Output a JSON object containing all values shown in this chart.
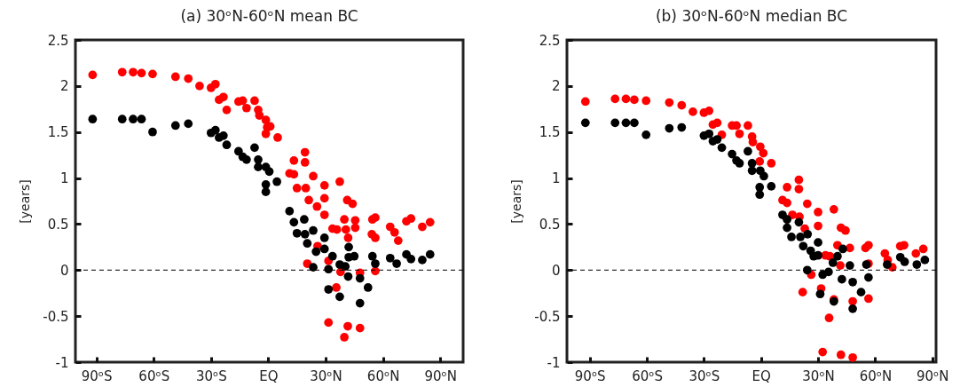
{
  "chart_data": [
    {
      "type": "scatter",
      "title": "(a) 30ᵒN-60ᵒN mean BC",
      "ylabel": "[years]",
      "xlim": [
        -101,
        102
      ],
      "ylim": [
        -1,
        2.5
      ],
      "xticks": [
        {
          "value": -90,
          "label": "90ᵒS"
        },
        {
          "value": -60,
          "label": "60ᵒS"
        },
        {
          "value": -30,
          "label": "30ᵒS"
        },
        {
          "value": 0,
          "label": "EQ"
        },
        {
          "value": 30,
          "label": "30ᵒN"
        },
        {
          "value": 60,
          "label": "60ᵒN"
        },
        {
          "value": 90,
          "label": "90ᵒN"
        }
      ],
      "yticks": [
        -1,
        -0.5,
        0,
        0.5,
        1,
        1.5,
        2,
        2.5
      ],
      "grid": false,
      "legend": false,
      "marker": "circle",
      "ref_lines": [
        {
          "axis": "y",
          "value": 0,
          "color": "#000000",
          "line_style": "dashed"
        }
      ],
      "series": [
        {
          "color": "#ff0000",
          "x": [
            -92,
            -76.5,
            -70.8,
            -66.4,
            -60.6,
            -48.6,
            -41.9,
            -36,
            -30,
            -27.7,
            -25.8,
            -23.5,
            -21.8,
            -15.6,
            -13.4,
            -11.4,
            -7.2,
            -5.3,
            -4.7,
            -1.3,
            -0.6,
            -1.3,
            1,
            4.9,
            13.4,
            19.2,
            19.2,
            11.1,
            13.4,
            23.5,
            15,
            19.6,
            21.2,
            25.5,
            29.4,
            29.4,
            29.4,
            37.4,
            41.3,
            44.1,
            33.6,
            35.9,
            39.8,
            40.6,
            41.8,
            45.5,
            45.5,
            54.5,
            56,
            54.2,
            56,
            63.8,
            66.1,
            68,
            72.3,
            74.7,
            80.6,
            84.7,
            25.8,
            20.4,
            31.5,
            37.8,
            48,
            56,
            35.6,
            31.5,
            41.6,
            39.8,
            48
          ],
          "values": [
            2.12,
            2.15,
            2.15,
            2.14,
            2.13,
            2.1,
            2.08,
            2,
            1.98,
            2.02,
            1.85,
            1.88,
            1.74,
            1.83,
            1.84,
            1.76,
            1.84,
            1.74,
            1.68,
            1.63,
            1.55,
            1.48,
            1.56,
            1.44,
            1.19,
            1.28,
            1.17,
            1.05,
            1.04,
            1.02,
            0.89,
            0.89,
            0.76,
            0.69,
            0.92,
            0.78,
            0.6,
            0.96,
            0.76,
            0.72,
            0.45,
            0.44,
            0.55,
            0.44,
            0.35,
            0.54,
            0.46,
            0.55,
            0.57,
            0.39,
            0.35,
            0.47,
            0.41,
            0.32,
            0.53,
            0.56,
            0.47,
            0.52,
            0.26,
            0.07,
            0.1,
            -0.02,
            -0.03,
            -0.01,
            -0.19,
            -0.57,
            -0.61,
            -0.73,
            -0.63
          ]
        },
        {
          "color": "#000000",
          "x": [
            -92,
            -76.5,
            -70.8,
            -66.4,
            -60.6,
            -48.6,
            -41.9,
            -30,
            -27.7,
            -25.8,
            -23.5,
            -21.8,
            -15.6,
            -13.4,
            -11.4,
            -7.2,
            -5.3,
            -5.3,
            -1.3,
            0.5,
            -1.3,
            -1.3,
            4.5,
            11.1,
            13.4,
            18.8,
            15,
            19.2,
            23.5,
            20.4,
            25,
            23.5,
            29.4,
            29.4,
            33.6,
            31.5,
            37.4,
            42.1,
            45,
            42.1,
            40.3,
            41.8,
            48,
            31.5,
            37.4,
            52.2,
            48,
            54.5,
            56,
            63.8,
            67.2,
            72.3,
            74.7,
            80.6,
            84.7
          ],
          "values": [
            1.64,
            1.64,
            1.64,
            1.64,
            1.5,
            1.57,
            1.59,
            1.49,
            1.52,
            1.44,
            1.46,
            1.36,
            1.29,
            1.23,
            1.2,
            1.33,
            1.2,
            1.12,
            1.12,
            1.07,
            0.93,
            0.85,
            0.96,
            0.64,
            0.52,
            0.55,
            0.4,
            0.39,
            0.43,
            0.29,
            0.2,
            0.03,
            0.35,
            0.23,
            0.15,
            0.01,
            0.06,
            0.25,
            0.15,
            0.14,
            0.04,
            -0.07,
            -0.09,
            -0.21,
            -0.29,
            -0.19,
            -0.36,
            0.15,
            0.07,
            0.13,
            0.07,
            0.17,
            0.12,
            0.11,
            0.17
          ]
        }
      ]
    },
    {
      "type": "scatter",
      "title": "(b) 30ᵒN-60ᵒN median BC",
      "ylabel": "[years]",
      "xlim": [
        -102,
        92
      ],
      "ylim": [
        -1,
        2.5
      ],
      "xticks": [
        {
          "value": -90,
          "label": "90ᵒS"
        },
        {
          "value": -60,
          "label": "60ᵒS"
        },
        {
          "value": -30,
          "label": "30ᵒS"
        },
        {
          "value": 0,
          "label": "EQ"
        },
        {
          "value": 30,
          "label": "30ᵒN"
        },
        {
          "value": 60,
          "label": "60ᵒN"
        },
        {
          "value": 90,
          "label": "90ᵒN"
        }
      ],
      "yticks": [
        -1,
        -0.5,
        0,
        0.5,
        1,
        1.5,
        2,
        2.5
      ],
      "grid": false,
      "legend": false,
      "marker": "circle",
      "ref_lines": [
        {
          "axis": "y",
          "value": 0,
          "color": "#000000",
          "line_style": "dashed"
        }
      ],
      "series": [
        {
          "color": "#ff0000",
          "x": [
            -92.3,
            -76.7,
            -71,
            -66.6,
            -60.4,
            -48.2,
            -41.7,
            -35.8,
            -30,
            -27.3,
            -25.3,
            -23,
            -20.6,
            -15.2,
            -12.9,
            -11.3,
            -6.9,
            -4.7,
            -4.3,
            -0.4,
            1.2,
            -0.7,
            5.4,
            13.7,
            19.9,
            19.9,
            11.3,
            13.7,
            24.3,
            30,
            30,
            16.5,
            20.2,
            23,
            38.3,
            42,
            44.4,
            33.9,
            36.2,
            40.2,
            46.7,
            41.7,
            26.4,
            21.9,
            31.6,
            38.3,
            35.8,
            48.2,
            56.5,
            54.9,
            56.5,
            56.5,
            65.1,
            66.6,
            69,
            73.2,
            75.2,
            81.4,
            85.3,
            32.4,
            42,
            48.2
          ],
          "values": [
            1.83,
            1.86,
            1.86,
            1.85,
            1.84,
            1.82,
            1.79,
            1.72,
            1.71,
            1.73,
            1.58,
            1.6,
            1.47,
            1.57,
            1.57,
            1.48,
            1.57,
            1.45,
            1.39,
            1.34,
            1.27,
            1.18,
            1.16,
            0.9,
            0.98,
            0.88,
            0.76,
            0.73,
            0.72,
            0.63,
            0.48,
            0.6,
            0.58,
            0.45,
            0.66,
            0.46,
            0.43,
            0.16,
            0.15,
            0.27,
            0.24,
            0.05,
            -0.05,
            -0.24,
            -0.2,
            -0.32,
            -0.52,
            -0.34,
            0.27,
            0.24,
            0.07,
            -0.31,
            0.18,
            0.11,
            0.03,
            0.26,
            0.27,
            0.18,
            0.23,
            -0.89,
            -0.92,
            -0.95
          ]
        },
        {
          "color": "#000000",
          "x": [
            -92.3,
            -76.7,
            -71,
            -66.6,
            -60.4,
            -48.2,
            -41.7,
            -30,
            -27.3,
            -25.3,
            -23,
            -20.6,
            -15.2,
            -12.9,
            -11.3,
            -6.9,
            -4.7,
            -4.7,
            -0.4,
            1.5,
            -0.7,
            -0.7,
            5.4,
            11.3,
            13.7,
            19.9,
            13.7,
            16,
            20.7,
            24.5,
            22.2,
            26.1,
            30,
            27.7,
            30,
            24.3,
            32.4,
            35.5,
            37.8,
            40.2,
            43,
            46.7,
            42.5,
            48.2,
            52.6,
            56.5,
            55.4,
            31.1,
            38.3,
            48.2,
            66.3,
            73.2,
            75.5,
            81.9,
            86.1
          ],
          "values": [
            1.6,
            1.6,
            1.6,
            1.6,
            1.47,
            1.54,
            1.55,
            1.46,
            1.48,
            1.4,
            1.42,
            1.33,
            1.26,
            1.19,
            1.16,
            1.29,
            1.16,
            1.08,
            1.08,
            1.02,
            0.9,
            0.82,
            0.91,
            0.6,
            0.55,
            0.52,
            0.46,
            0.36,
            0.36,
            0.39,
            0.26,
            0.21,
            0.3,
            0.15,
            0.16,
            0,
            -0.05,
            -0.02,
            0.08,
            0.15,
            0.23,
            0.05,
            -0.1,
            -0.13,
            -0.24,
            -0.08,
            0.06,
            -0.26,
            -0.34,
            -0.42,
            0.06,
            0.14,
            0.09,
            0.06,
            0.11
          ]
        }
      ]
    }
  ]
}
